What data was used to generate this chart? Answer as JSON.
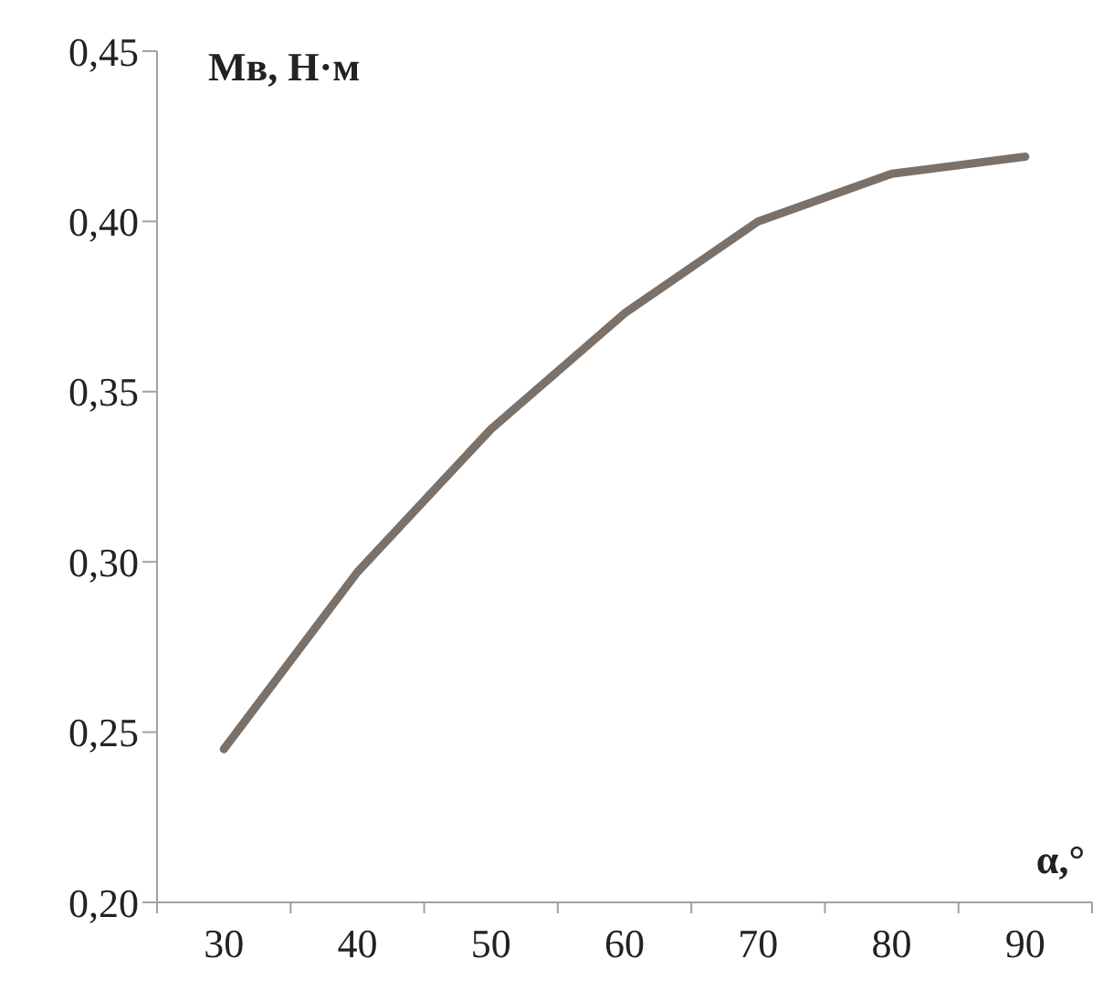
{
  "chart_data": {
    "type": "line",
    "xlabel": "α,°",
    "ylabel": "Мв, Н·м",
    "categories": [
      "30",
      "40",
      "50",
      "60",
      "70",
      "80",
      "90"
    ],
    "series": [
      {
        "color": "#7b7168",
        "values": [
          0.245,
          0.297,
          0.339,
          0.373,
          0.4,
          0.414,
          0.419
        ]
      }
    ],
    "ylim": [
      0.2,
      0.45
    ],
    "yticks": [
      {
        "value": 0.2,
        "label": "0,20"
      },
      {
        "value": 0.25,
        "label": "0,25"
      },
      {
        "value": 0.3,
        "label": "0,30"
      },
      {
        "value": 0.35,
        "label": "0,35"
      },
      {
        "value": 0.4,
        "label": "0,40"
      },
      {
        "value": 0.45,
        "label": "0,45"
      }
    ],
    "grid": false,
    "legend": false,
    "marker": "none",
    "line_style": "solid"
  }
}
